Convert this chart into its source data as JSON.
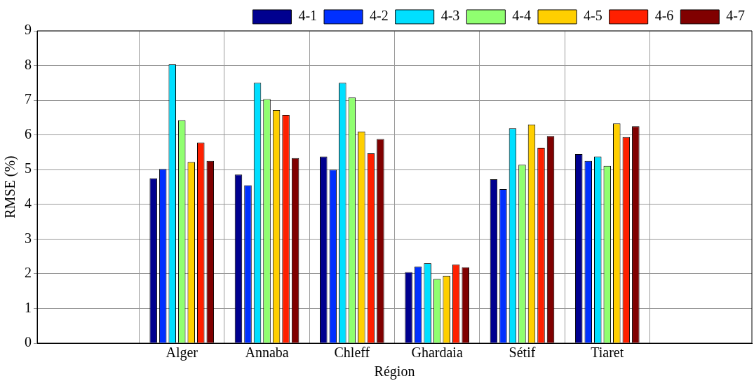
{
  "chart_data": {
    "type": "bar",
    "xlabel": "Région",
    "ylabel": "RMSE (%)",
    "categories": [
      "Alger",
      "Annaba",
      "Chleff",
      "Ghardaia",
      "Sétif",
      "Tiaret"
    ],
    "series": [
      {
        "name": "4-1",
        "color": "#00008f",
        "values": [
          4.75,
          4.86,
          5.38,
          2.05,
          4.72,
          5.45
        ]
      },
      {
        "name": "4-2",
        "color": "#0030ff",
        "values": [
          5.02,
          4.55,
          5.0,
          2.21,
          4.44,
          5.25
        ]
      },
      {
        "name": "4-3",
        "color": "#00dfff",
        "values": [
          8.03,
          7.5,
          7.5,
          2.3,
          6.19,
          5.38
        ]
      },
      {
        "name": "4-4",
        "color": "#90ff70",
        "values": [
          6.42,
          7.03,
          7.08,
          1.85,
          5.14,
          5.11
        ]
      },
      {
        "name": "4-5",
        "color": "#ffcf00",
        "values": [
          5.22,
          6.72,
          6.1,
          1.94,
          6.3,
          6.33
        ]
      },
      {
        "name": "4-6",
        "color": "#ff2000",
        "values": [
          5.78,
          6.58,
          5.47,
          2.27,
          5.63,
          5.94
        ]
      },
      {
        "name": "4-7",
        "color": "#800000",
        "values": [
          5.25,
          5.33,
          5.88,
          2.19,
          5.97,
          6.25
        ]
      }
    ],
    "ylim": [
      0,
      9
    ],
    "yticks": [
      0,
      1,
      2,
      3,
      4,
      5,
      6,
      7,
      8,
      9
    ],
    "grid": true,
    "legend": "top right"
  }
}
